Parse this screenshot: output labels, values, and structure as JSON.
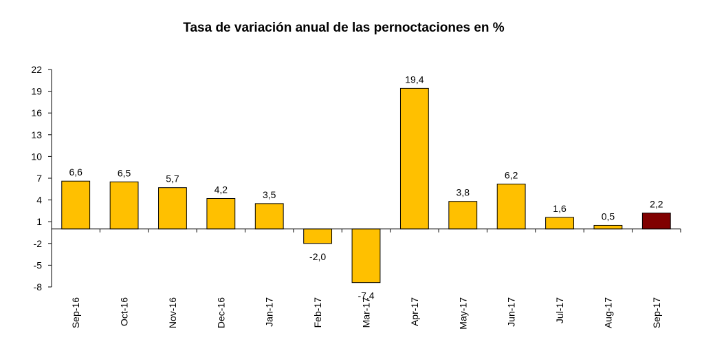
{
  "chart_data": {
    "type": "bar",
    "title": "Tasa de variación anual de las pernoctaciones en %",
    "xlabel": "",
    "ylabel": "",
    "ylim": [
      -8,
      22
    ],
    "yticks": [
      22,
      19,
      16,
      13,
      10,
      7,
      4,
      1,
      -2,
      -5,
      -8
    ],
    "categories": [
      "Sep-16",
      "Oct-16",
      "Nov-16",
      "Dec-16",
      "Jan-17",
      "Feb-17",
      "Mar-17",
      "Apr-17",
      "May-17",
      "Jun-17",
      "Jul-17",
      "Aug-17",
      "Sep-17"
    ],
    "values": [
      6.6,
      6.5,
      5.7,
      4.2,
      3.5,
      -2.0,
      -7.4,
      19.4,
      3.8,
      6.2,
      1.6,
      0.5,
      2.2
    ],
    "value_labels": [
      "6,6",
      "6,5",
      "5,7",
      "4,2",
      "3,5",
      "-2,0",
      "-7,4",
      "19,4",
      "3,8",
      "6,2",
      "1,6",
      "0,5",
      "2,2"
    ],
    "grid": false,
    "legend": "none",
    "colors": {
      "bar": "#FFC000",
      "highlight_bar": "#800000",
      "bar_stroke": "#000000",
      "axis": "#000000"
    },
    "highlight_index": 12
  }
}
